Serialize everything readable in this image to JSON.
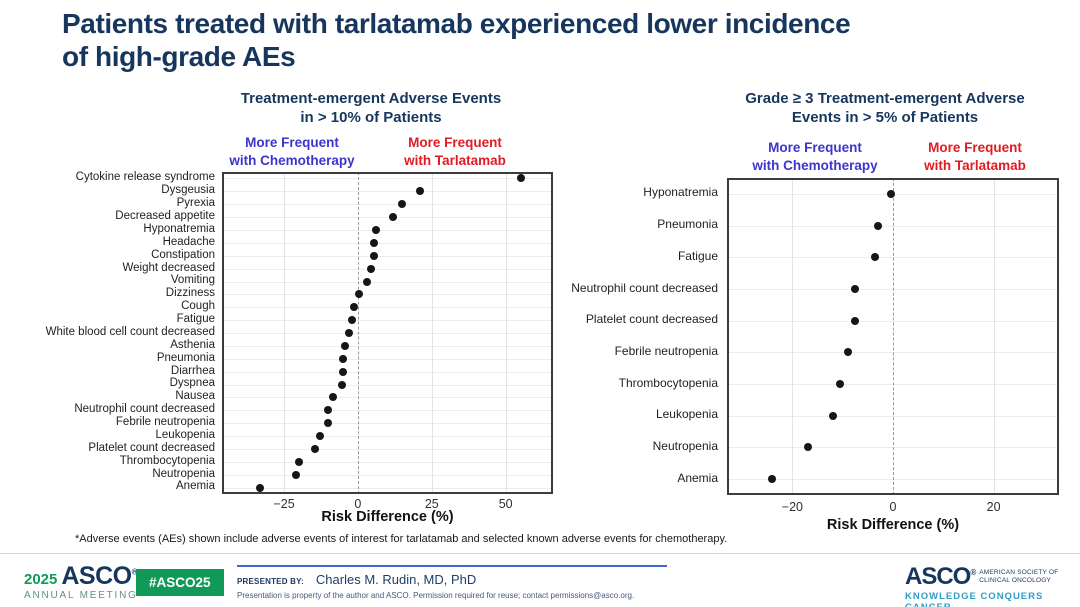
{
  "colors": {
    "navy": "#17365d",
    "legend_blue": "#3d35cc",
    "legend_red": "#e11b22",
    "dot": "#161616",
    "green": "#119a57",
    "teal": "#2e9ec7"
  },
  "title_lines": [
    "Patients treated with tarlatamab experienced lower incidence",
    "of high-grade AEs"
  ],
  "chart_data": [
    {
      "type": "scatter",
      "title_lines": [
        "Treatment-emergent Adverse Events",
        "in > 10% of Patients"
      ],
      "legend_left_lines": [
        "More Frequent",
        "with Chemotherapy"
      ],
      "legend_right_lines": [
        "More Frequent",
        "with Tarlatamab"
      ],
      "categories": [
        "Cytokine release syndrome",
        "Dysgeusia",
        "Pyrexia",
        "Decreased appetite",
        "Hyponatremia",
        "Headache",
        "Constipation",
        "Weight decreased",
        "Vomiting",
        "Dizziness",
        "Cough",
        "Fatigue",
        "White blood cell count decreased",
        "Asthenia",
        "Pneumonia",
        "Diarrhea",
        "Dyspnea",
        "Nausea",
        "Neutrophil count decreased",
        "Febrile neutropenia",
        "Leukopenia",
        "Platelet count decreased",
        "Thrombocytopenia",
        "Neutropenia",
        "Anemia"
      ],
      "values": [
        55,
        21,
        15,
        12,
        6,
        5.5,
        5.5,
        4.5,
        3,
        0.5,
        -1.5,
        -2,
        -3,
        -4.5,
        -5,
        -5,
        -5.5,
        -8.5,
        -10,
        -10,
        -13,
        -14.5,
        -20,
        -21,
        -33
      ],
      "xlabel": "Risk Difference (%)",
      "xticks": [
        -25,
        0,
        25,
        50
      ],
      "xlim": [
        -46,
        66
      ],
      "zero_line": "dashed",
      "grid": true
    },
    {
      "type": "scatter",
      "title_lines": [
        "Grade ≥ 3 Treatment-emergent Adverse",
        "Events in > 5% of Patients"
      ],
      "legend_left_lines": [
        "More Frequent",
        "with Chemotherapy"
      ],
      "legend_right_lines": [
        "More Frequent",
        "with Tarlatamab"
      ],
      "categories": [
        "Hyponatremia",
        "Pneumonia",
        "Fatigue",
        "Neutrophil count decreased",
        "Platelet count decreased",
        "Febrile neutropenia",
        "Thrombocytopenia",
        "Leukopenia",
        "Neutropenia",
        "Anemia"
      ],
      "values": [
        -0.5,
        -3,
        -3.5,
        -7.5,
        -7.5,
        -9,
        -10.5,
        -12,
        -17,
        -24
      ],
      "xlabel": "Risk Difference (%)",
      "xticks": [
        -20,
        0,
        20
      ],
      "xlim": [
        -33,
        33
      ],
      "zero_line": "dashed",
      "grid": true
    }
  ],
  "footnote": "*Adverse events (AEs) shown include adverse events of interest for tarlatamab and selected known adverse events for chemotherapy.",
  "footer": {
    "year": "2025",
    "logo_asco": "ASCO",
    "reg_mark": "®",
    "annual_meeting": "ANNUAL MEETING",
    "hashtag": "#ASCO25",
    "presented_by_label": "PRESENTED BY:",
    "presenter": "Charles M. Rudin, MD, PhD",
    "permission": "Presentation is property of the author and ASCO. Permission required for reuse; contact permissions@asco.org.",
    "society_lines": [
      "AMERICAN SOCIETY OF",
      "CLINICAL ONCOLOGY"
    ],
    "tagline": "KNOWLEDGE CONQUERS CANCER"
  }
}
